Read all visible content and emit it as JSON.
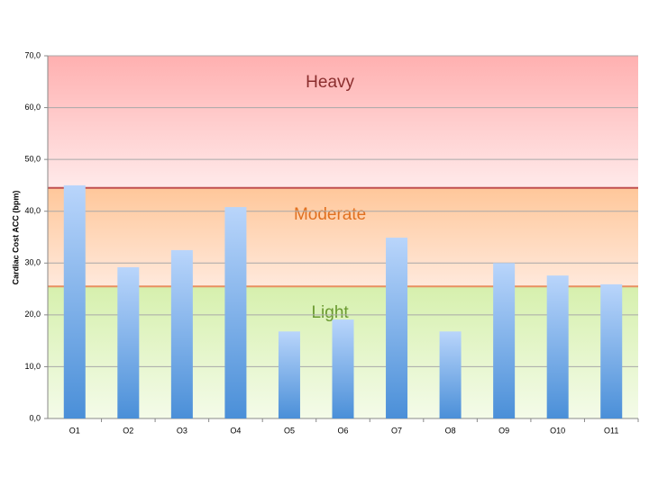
{
  "chart_data": {
    "type": "bar",
    "y_label": "Cardiac Cost ACC (bpm)",
    "categories": [
      "O1",
      "O2",
      "O3",
      "O4",
      "O5",
      "O6",
      "O7",
      "O8",
      "O9",
      "O10",
      "O11"
    ],
    "values": [
      45.0,
      29.2,
      32.5,
      40.8,
      16.8,
      19.1,
      34.9,
      16.8,
      30.0,
      27.6,
      25.9
    ],
    "ylim": [
      0,
      70
    ],
    "yticks": [
      {
        "value": 0,
        "label": "0,0"
      },
      {
        "value": 10,
        "label": "10,0"
      },
      {
        "value": 20,
        "label": "20,0"
      },
      {
        "value": 30,
        "label": "30,0"
      },
      {
        "value": 40,
        "label": "40,0"
      },
      {
        "value": 50,
        "label": "50,0"
      },
      {
        "value": 60,
        "label": "60,0"
      },
      {
        "value": 70,
        "label": "70,0"
      }
    ],
    "grid": true,
    "zones": [
      {
        "label": "Light",
        "from": 0,
        "to": 25.5,
        "color": "#6a9a30"
      },
      {
        "label": "Moderate",
        "from": 25.5,
        "to": 44.5,
        "color": "#e07020"
      },
      {
        "label": "Heavy",
        "from": 44.5,
        "to": 70,
        "color": "#8b2e2e"
      }
    ]
  }
}
